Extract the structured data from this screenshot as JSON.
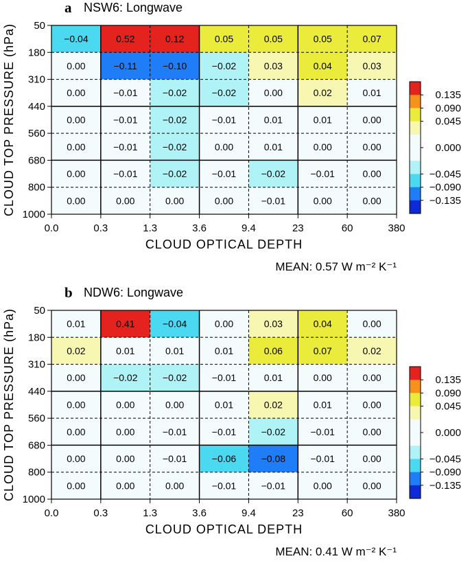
{
  "chart_data": [
    {
      "type": "heatmap",
      "panel_label": "a",
      "title": "NSW6: Longwave",
      "xlabel": "CLOUD OPTICAL DEPTH",
      "ylabel": "CLOUD TOP PRESSURE (hPa)",
      "x_ticks": [
        "0.0",
        "0.3",
        "1.3",
        "3.6",
        "9.4",
        "23",
        "60",
        "380"
      ],
      "y_ticks": [
        "50",
        "180",
        "310",
        "440",
        "560",
        "680",
        "800",
        "1000"
      ],
      "mean_label": "MEAN: 0.57 W m⁻² K⁻¹",
      "values": [
        [
          "-0.04",
          "0.52",
          "0.12",
          "0.05",
          "0.05",
          "0.05",
          "0.07"
        ],
        [
          "0.00",
          "-0.11",
          "-0.10",
          "-0.02",
          "0.03",
          "0.04",
          "0.03"
        ],
        [
          "0.00",
          "-0.01",
          "-0.02",
          "-0.02",
          "0.00",
          "0.02",
          "0.01"
        ],
        [
          "0.00",
          "-0.01",
          "-0.02",
          "-0.01",
          "0.01",
          "0.01",
          "0.00"
        ],
        [
          "0.00",
          "-0.01",
          "-0.02",
          "0.00",
          "0.01",
          "0.00",
          "0.00"
        ],
        [
          "0.00",
          "-0.01",
          "-0.02",
          "-0.01",
          "-0.02",
          "-0.01",
          "0.00"
        ],
        [
          "0.00",
          "0.00",
          "0.00",
          "0.00",
          "-0.01",
          "0.00",
          "0.00"
        ]
      ]
    },
    {
      "type": "heatmap",
      "panel_label": "b",
      "title": "NDW6: Longwave",
      "xlabel": "CLOUD OPTICAL DEPTH",
      "ylabel": "CLOUD TOP PRESSURE (hPa)",
      "x_ticks": [
        "0.0",
        "0.3",
        "1.3",
        "3.6",
        "9.4",
        "23",
        "60",
        "380"
      ],
      "y_ticks": [
        "50",
        "180",
        "310",
        "440",
        "560",
        "680",
        "800",
        "1000"
      ],
      "mean_label": "MEAN: 0.41 W m⁻² K⁻¹",
      "values": [
        [
          "0.01",
          "0.41",
          "-0.04",
          "0.00",
          "0.03",
          "0.04",
          "0.00"
        ],
        [
          "0.02",
          "0.01",
          "0.01",
          "0.01",
          "0.06",
          "0.07",
          "0.02"
        ],
        [
          "0.00",
          "-0.02",
          "-0.02",
          "-0.01",
          "0.01",
          "0.00",
          "0.00"
        ],
        [
          "0.00",
          "0.00",
          "0.00",
          "0.01",
          "0.02",
          "0.01",
          "0.00"
        ],
        [
          "0.00",
          "0.00",
          "-0.01",
          "-0.01",
          "-0.02",
          "-0.01",
          "0.00"
        ],
        [
          "0.00",
          "0.00",
          "-0.01",
          "-0.06",
          "-0.08",
          "-0.01",
          "0.00"
        ],
        [
          "0.00",
          "0.00",
          "0.00",
          "-0.01",
          "-0.01",
          "0.00",
          "0.00"
        ]
      ]
    }
  ],
  "colorbar": {
    "labels": [
      "0.135",
      "0.090",
      "0.045",
      "0.000",
      "-0.045",
      "-0.090",
      "-0.135"
    ],
    "colors_top_to_bottom": [
      "#e4231e",
      "#f7911c",
      "#ebeb3c",
      "#f7f7b2",
      "#f4fbfd",
      "#f4fbfd",
      "#b0f3f6",
      "#4ad9f0",
      "#1f7df7",
      "#0d2ad6"
    ]
  }
}
